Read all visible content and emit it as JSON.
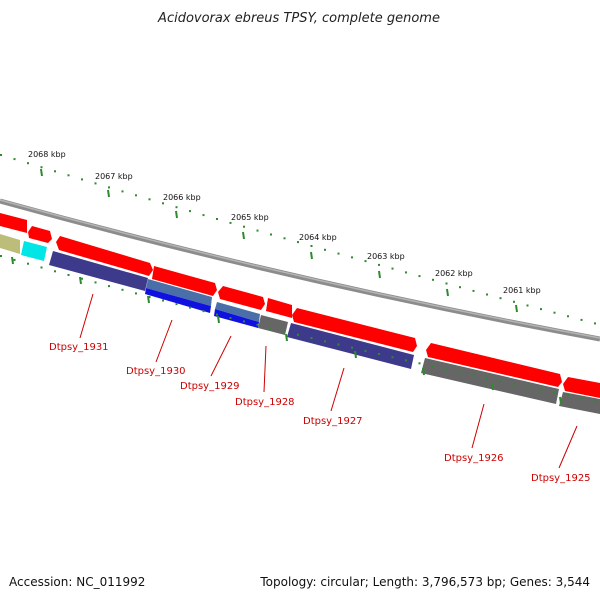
{
  "title": "Acidovorax ebreus TPSY, complete genome",
  "footer": {
    "accession": "Accession: NC_011992",
    "summary": "Topology: circular; Length: 3,796,573 bp; Genes: 3,544"
  },
  "colors": {
    "backbone": "#8c8c8c",
    "forward_gene": "#ff0000",
    "tick": "#2d8a2d",
    "label": "#cc0000",
    "purple_gene": "#3d3a8c",
    "blue_gene": "#1010e0",
    "gray_gene": "#666666",
    "cyan_gene": "#00e5e5",
    "olive_gene": "#bdbd7a"
  },
  "scale_ticks": [
    {
      "label": "2068 kbp"
    },
    {
      "label": "2067 kbp"
    },
    {
      "label": "2066 kbp"
    },
    {
      "label": "2065 kbp"
    },
    {
      "label": "2064 kbp"
    },
    {
      "label": "2063 kbp"
    },
    {
      "label": "2062 kbp"
    },
    {
      "label": "2061 kbp"
    }
  ],
  "gene_labels": [
    {
      "label": "Dtpsy_1931"
    },
    {
      "label": "Dtpsy_1930"
    },
    {
      "label": "Dtpsy_1929"
    },
    {
      "label": "Dtpsy_1928"
    },
    {
      "label": "Dtpsy_1927"
    },
    {
      "label": "Dtpsy_1926"
    },
    {
      "label": "Dtpsy_1925"
    }
  ]
}
